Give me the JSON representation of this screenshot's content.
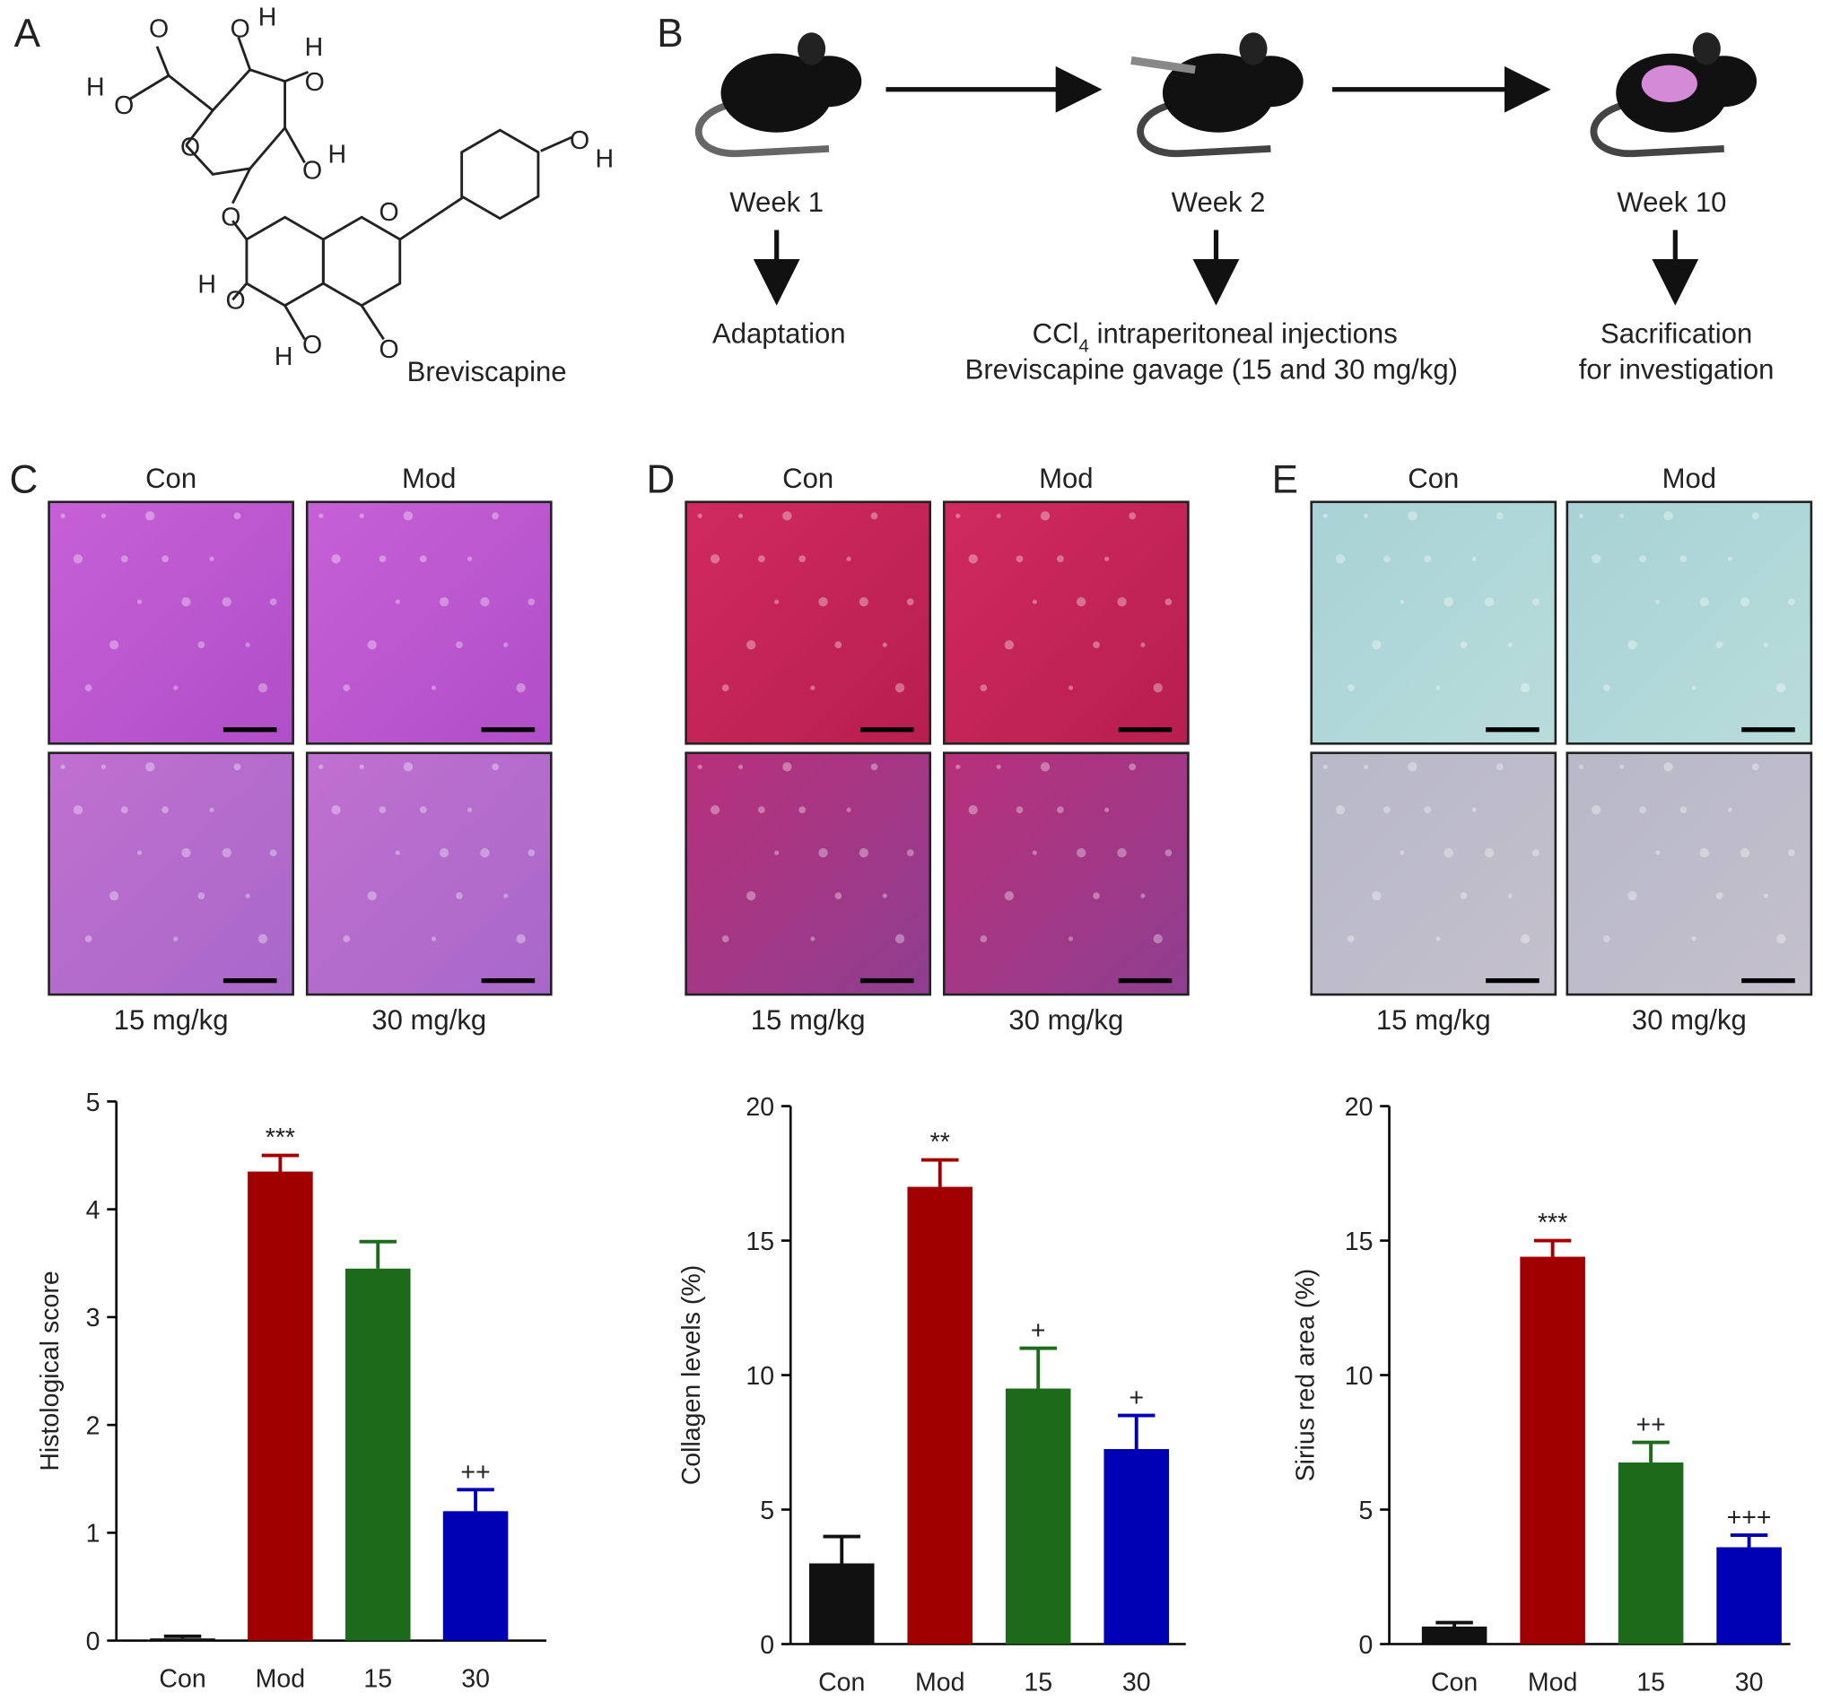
{
  "panel_a": {
    "label": "A",
    "name": "Breviscapine",
    "atoms": [
      "O",
      "O",
      "H",
      "H",
      "O",
      "H",
      "O",
      "O",
      "O",
      "H",
      "O",
      "O",
      "O",
      "H",
      "H",
      "O",
      "H",
      "O",
      "O"
    ]
  },
  "panel_b": {
    "label": "B",
    "steps": [
      {
        "week": "Week 1",
        "lines": [
          "Adaptation"
        ]
      },
      {
        "week": "Week 2",
        "lines": [
          "CCl",
          "4",
          " intraperitoneal injections",
          "Breviscapine gavage (15 and 30 mg/kg)"
        ]
      },
      {
        "week": "Week 10",
        "lines": [
          "Sacrification",
          "for investigation"
        ]
      }
    ]
  },
  "histology": [
    {
      "label": "C",
      "top": [
        "Con",
        "Mod"
      ],
      "bottom": [
        "15 mg/kg",
        "30 mg/kg"
      ]
    },
    {
      "label": "D",
      "top": [
        "Con",
        "Mod"
      ],
      "bottom": [
        "15 mg/kg",
        "30 mg/kg"
      ]
    },
    {
      "label": "E",
      "top": [
        "Con",
        "Mod"
      ],
      "bottom": [
        "15 mg/kg",
        "30 mg/kg"
      ]
    }
  ],
  "chart_data": [
    {
      "type": "bar",
      "ylabel": "Histological score",
      "categories": [
        "Con",
        "Mod",
        "15",
        "30"
      ],
      "values": [
        0.02,
        4.35,
        3.45,
        1.2
      ],
      "errors": [
        0.02,
        0.15,
        0.25,
        0.2
      ],
      "annotations": [
        null,
        "***",
        null,
        "++"
      ],
      "colors": [
        "#111111",
        "#a00000",
        "#1b6b1b",
        "#0000b4"
      ],
      "ylim": [
        0,
        5
      ],
      "yticks": [
        0,
        1,
        2,
        3,
        4,
        5
      ]
    },
    {
      "type": "bar",
      "ylabel": "Collagen levels (%)",
      "categories": [
        "Con",
        "Mod",
        "15",
        "30"
      ],
      "values": [
        3,
        17,
        9.5,
        7.25
      ],
      "errors": [
        1,
        1,
        1.5,
        1.25
      ],
      "annotations": [
        null,
        "**",
        "+",
        "+"
      ],
      "colors": [
        "#111111",
        "#a00000",
        "#1b6b1b",
        "#0000b4"
      ],
      "ylim": [
        0,
        20
      ],
      "yticks": [
        0,
        5,
        10,
        15,
        20
      ]
    },
    {
      "type": "bar",
      "ylabel": "Sirius red area (%)",
      "categories": [
        "Con",
        "Mod",
        "15",
        "30"
      ],
      "values": [
        0.65,
        14.4,
        6.75,
        3.6
      ],
      "errors": [
        0.15,
        0.6,
        0.75,
        0.45
      ],
      "annotations": [
        null,
        "***",
        "++",
        "+++"
      ],
      "colors": [
        "#111111",
        "#a00000",
        "#1b6b1b",
        "#0000b4"
      ],
      "ylim": [
        0,
        20
      ],
      "yticks": [
        0,
        5,
        10,
        15,
        20
      ]
    }
  ]
}
